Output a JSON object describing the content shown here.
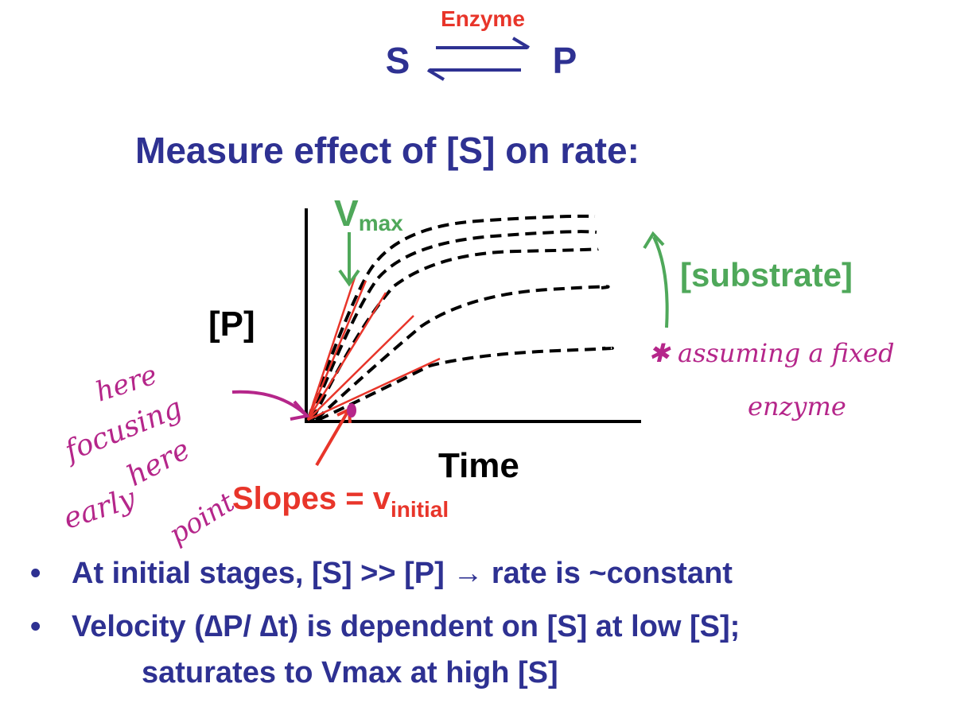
{
  "reaction": {
    "enzyme_label": "Enzyme",
    "substrate": "S",
    "product": "P"
  },
  "title": "Measure effect of [S] on rate:",
  "diagram": {
    "y_axis_label": "[P]",
    "x_axis_label": "Time",
    "vmax_label": "V",
    "vmax_sub": "max",
    "substrate_label": "[substrate]",
    "slopes_label": "Slopes = v",
    "slopes_sub": "initial"
  },
  "annotations": {
    "left": [
      "here",
      "focusing",
      "here",
      "early",
      "point"
    ],
    "right_line1": "✱ assuming a fixed",
    "right_line2": "enzyme"
  },
  "bullets": [
    {
      "lines": [
        "At initial stages, [S] >> [P] → rate is ~constant"
      ]
    },
    {
      "lines": [
        "Velocity (∆P/ ∆t) is dependent on [S] at low [S];",
        "saturates to Vmax at high [S]"
      ]
    }
  ],
  "colors": {
    "text": "#2e3192",
    "accent_red": "#e8352a",
    "accent_green": "#4fa85a",
    "handwriting": "#b5268a"
  }
}
